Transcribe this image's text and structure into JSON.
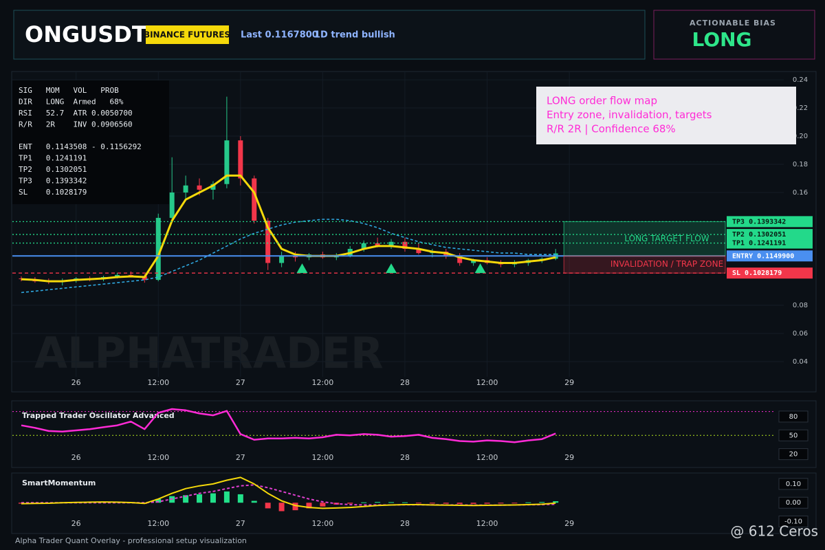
{
  "header": {
    "symbol": "ONGUSDT",
    "exchange": "BINANCE FUTURES",
    "last": "Last 0.1167800",
    "trend": "1D trend bullish"
  },
  "bias": {
    "caption": "ACTIONABLE BIAS",
    "value": "LONG"
  },
  "info_panel": {
    "stats": [
      "SIG   MOM   VOL   PROB",
      "DIR   LONG  Armed   68%",
      "RSI   52.7  ATR 0.0050700",
      "R/R   2R    INV 0.0906560"
    ],
    "levels": [
      "ENT   0.1143508 - 0.1156292",
      "TP1   0.1241191",
      "TP2   0.1302051",
      "TP3   0.1393342",
      "SL    0.1028179"
    ]
  },
  "overlay": {
    "lines": [
      "LONG order flow map",
      "Entry zone, invalidation, targets",
      "R/R 2R | Confidence 68%"
    ]
  },
  "watermark": "ALPHATRADER",
  "footer": "Alpha Trader Quant Overlay - professional setup visualization",
  "credit": "@ 612 Ceros",
  "chart_data": [
    {
      "type": "candlestick",
      "x": [
        -8,
        -6,
        -4,
        -2,
        0,
        2,
        4,
        6,
        8,
        10,
        12,
        14,
        16,
        18,
        20,
        22,
        24,
        26,
        28,
        30,
        32,
        34,
        36,
        38,
        40,
        42,
        44,
        46,
        48,
        50,
        52,
        54,
        56,
        58,
        60,
        62,
        64,
        66,
        68,
        70
      ],
      "open": [
        0.099,
        0.0985,
        0.097,
        0.0965,
        0.0975,
        0.099,
        0.0985,
        0.1,
        0.1015,
        0.1005,
        0.098,
        0.142,
        0.16,
        0.165,
        0.162,
        0.166,
        0.197,
        0.17,
        0.14,
        0.11,
        0.115,
        0.114,
        0.116,
        0.114,
        0.115,
        0.12,
        0.124,
        0.122,
        0.125,
        0.12,
        0.117,
        0.118,
        0.115,
        0.11,
        0.112,
        0.11,
        0.109,
        0.11,
        0.112,
        0.113
      ],
      "high": [
        0.1005,
        0.1,
        0.099,
        0.099,
        0.1,
        0.1005,
        0.101,
        0.103,
        0.104,
        0.102,
        0.145,
        0.185,
        0.172,
        0.17,
        0.168,
        0.228,
        0.2,
        0.172,
        0.142,
        0.118,
        0.118,
        0.117,
        0.118,
        0.117,
        0.122,
        0.126,
        0.128,
        0.127,
        0.128,
        0.124,
        0.12,
        0.12,
        0.117,
        0.113,
        0.114,
        0.112,
        0.112,
        0.113,
        0.114,
        0.12
      ],
      "low": [
        0.097,
        0.096,
        0.095,
        0.094,
        0.096,
        0.097,
        0.097,
        0.099,
        0.1,
        0.096,
        0.097,
        0.14,
        0.155,
        0.158,
        0.155,
        0.163,
        0.165,
        0.138,
        0.105,
        0.107,
        0.111,
        0.112,
        0.113,
        0.112,
        0.114,
        0.118,
        0.121,
        0.12,
        0.118,
        0.116,
        0.114,
        0.113,
        0.108,
        0.108,
        0.109,
        0.107,
        0.107,
        0.108,
        0.11,
        0.112
      ],
      "close": [
        0.0985,
        0.097,
        0.0965,
        0.0975,
        0.099,
        0.0985,
        0.1,
        0.1015,
        0.1005,
        0.098,
        0.142,
        0.16,
        0.165,
        0.162,
        0.166,
        0.197,
        0.17,
        0.14,
        0.11,
        0.115,
        0.114,
        0.116,
        0.114,
        0.115,
        0.12,
        0.124,
        0.122,
        0.125,
        0.12,
        0.117,
        0.118,
        0.115,
        0.11,
        0.112,
        0.11,
        0.109,
        0.11,
        0.112,
        0.113,
        0.1168
      ],
      "up_color": "#26c98a",
      "down_color": "#f2364a",
      "overlays": [
        {
          "color": "#2fa8e0",
          "dash": true,
          "values": [
            0.089,
            0.09,
            0.091,
            0.092,
            0.093,
            0.094,
            0.095,
            0.096,
            0.097,
            0.098,
            0.1,
            0.104,
            0.108,
            0.112,
            0.117,
            0.122,
            0.127,
            0.131,
            0.134,
            0.137,
            0.139,
            0.14,
            0.141,
            0.141,
            0.14,
            0.138,
            0.135,
            0.131,
            0.128,
            0.125,
            0.123,
            0.121,
            0.12,
            0.119,
            0.118,
            0.117,
            0.117,
            0.116,
            0.116,
            0.116
          ]
        },
        {
          "color": "#f5d90a",
          "values": [
            0.0985,
            0.098,
            0.097,
            0.097,
            0.098,
            0.0985,
            0.099,
            0.1,
            0.1005,
            0.1,
            0.115,
            0.14,
            0.155,
            0.16,
            0.165,
            0.172,
            0.172,
            0.16,
            0.135,
            0.12,
            0.116,
            0.115,
            0.115,
            0.115,
            0.117,
            0.12,
            0.122,
            0.122,
            0.121,
            0.12,
            0.118,
            0.117,
            0.114,
            0.112,
            0.111,
            0.11,
            0.11,
            0.111,
            0.112,
            0.114
          ]
        }
      ],
      "zones": [
        {
          "label": "LONG TARGET FLOW",
          "from": 0.11499,
          "to": 0.1393342,
          "color": "#23d98a"
        },
        {
          "label": "INVALIDATION / TRAP ZONE",
          "from": 0.1028179,
          "to": 0.11499,
          "color": "#f2364a"
        }
      ],
      "levels": [
        {
          "label": "TP1 0.1241191",
          "value": 0.1241191,
          "color": "#23d98a",
          "style": "dotted"
        },
        {
          "label": "TP2 0.1302051",
          "value": 0.1302051,
          "color": "#23d98a",
          "style": "dotted"
        },
        {
          "label": "TP3 0.1393342",
          "value": 0.1393342,
          "color": "#23d98a",
          "style": "dotted"
        },
        {
          "label": "ENTRY 0.1149900",
          "value": 0.11499,
          "color": "#4a8ff0",
          "style": "solid"
        },
        {
          "label": "SL 0.1028179",
          "value": 0.1028179,
          "color": "#f2364a",
          "style": "dashed"
        }
      ],
      "signals": {
        "x": [
          33,
          46,
          59
        ],
        "y": [
          0.1063,
          0.1063,
          0.1063
        ],
        "color": "#23d98a"
      },
      "xlim": [
        -9.3,
        103.3
      ],
      "ylim": [
        0.0185,
        0.2454
      ],
      "xticks": [
        {
          "value": 0,
          "label": "26"
        },
        {
          "value": 12,
          "label": "12:00"
        },
        {
          "value": 24,
          "label": "27"
        },
        {
          "value": 36,
          "label": "12:00"
        },
        {
          "value": 48,
          "label": "28"
        },
        {
          "value": 60,
          "label": "12:00"
        },
        {
          "value": 72,
          "label": "29"
        }
      ],
      "yticks": [
        0.04,
        0.06,
        0.08,
        0.16,
        0.18,
        {
          "value": 0.2,
          "label": "0.20"
        },
        0.22,
        0.24
      ],
      "grid": true
    },
    {
      "type": "line",
      "title": "Trapped Trader Oscillator Advanced",
      "x": [
        -8,
        -6,
        -4,
        -2,
        0,
        2,
        4,
        6,
        8,
        10,
        12,
        14,
        16,
        18,
        20,
        22,
        24,
        26,
        28,
        30,
        32,
        34,
        36,
        38,
        40,
        42,
        44,
        46,
        48,
        50,
        52,
        54,
        56,
        58,
        60,
        62,
        64,
        66,
        68,
        70
      ],
      "series": [
        {
          "color": "#ff2bd6",
          "values": [
            66,
            62,
            57,
            56,
            58,
            60,
            63,
            66,
            72,
            60,
            86,
            92,
            90,
            85,
            82,
            89,
            52,
            43,
            45,
            45,
            46,
            45,
            47,
            51,
            50,
            52,
            51,
            48,
            49,
            51,
            46,
            44,
            41,
            40,
            42,
            41,
            39,
            42,
            44,
            53
          ]
        }
      ],
      "levels": [
        {
          "value": 88,
          "color": "#ff2bd6"
        },
        {
          "value": 50,
          "color": "#b5e61d"
        }
      ],
      "xlim": [
        -9.3,
        103.3
      ],
      "ylim": [
        -1.3,
        95.3
      ],
      "xticks": [
        {
          "value": 0,
          "label": "26"
        },
        {
          "value": 12,
          "label": "12:00"
        },
        {
          "value": 24,
          "label": "27"
        },
        {
          "value": 36,
          "label": "12:00"
        },
        {
          "value": 48,
          "label": "28"
        },
        {
          "value": 60,
          "label": "12:00"
        },
        {
          "value": 72,
          "label": "29"
        }
      ],
      "yticks": [
        20,
        50,
        80
      ]
    },
    {
      "type": "combo",
      "title": "SmartMomentum",
      "x": [
        -8,
        -6,
        -4,
        -2,
        0,
        2,
        4,
        6,
        8,
        10,
        12,
        14,
        16,
        18,
        20,
        22,
        24,
        26,
        28,
        30,
        32,
        34,
        36,
        38,
        40,
        42,
        44,
        46,
        48,
        50,
        52,
        54,
        56,
        58,
        60,
        62,
        64,
        66,
        68,
        70
      ],
      "bars": [
        -0.005,
        -0.004,
        -0.003,
        0.002,
        0.003,
        0.004,
        0.005,
        0.004,
        0.002,
        -0.006,
        0.02,
        0.035,
        0.04,
        0.045,
        0.05,
        0.06,
        0.045,
        0.01,
        -0.03,
        -0.045,
        -0.04,
        -0.03,
        -0.02,
        -0.01,
        -0.005,
        0.002,
        0.004,
        0.003,
        0.002,
        -0.002,
        -0.004,
        -0.005,
        -0.006,
        -0.006,
        -0.005,
        -0.004,
        -0.002,
        0.002,
        0.004,
        0.008
      ],
      "up_color": "#22e08a",
      "down_color": "#f2364a",
      "series": [
        {
          "color": "#e040d0",
          "dash": true,
          "values": [
            0,
            0,
            0,
            0,
            0,
            0,
            0,
            0,
            0,
            0,
            0.005,
            0.02,
            0.035,
            0.05,
            0.06,
            0.075,
            0.09,
            0.095,
            0.08,
            0.06,
            0.04,
            0.02,
            0.005,
            -0.005,
            -0.01,
            -0.012,
            -0.012,
            -0.012,
            -0.011,
            -0.011,
            -0.011,
            -0.012,
            -0.012,
            -0.013,
            -0.013,
            -0.013,
            -0.012,
            -0.011,
            -0.01,
            -0.008
          ]
        },
        {
          "color": "#f5d90a",
          "values": [
            -0.005,
            -0.004,
            -0.003,
            0,
            0.002,
            0.003,
            0.004,
            0.003,
            0.001,
            -0.004,
            0.02,
            0.05,
            0.075,
            0.09,
            0.1,
            0.12,
            0.135,
            0.1,
            0.05,
            0.01,
            -0.015,
            -0.025,
            -0.03,
            -0.028,
            -0.025,
            -0.02,
            -0.015,
            -0.012,
            -0.01,
            -0.01,
            -0.012,
            -0.013,
            -0.014,
            -0.015,
            -0.014,
            -0.013,
            -0.012,
            -0.01,
            -0.008,
            -0.002
          ]
        }
      ],
      "xlim": [
        -9.3,
        103.3
      ],
      "ylim": [
        -0.164,
        0.151
      ],
      "xticks": [
        {
          "value": 0,
          "label": "26"
        },
        {
          "value": 12,
          "label": "12:00"
        },
        {
          "value": 24,
          "label": "27"
        },
        {
          "value": 36,
          "label": "12:00"
        },
        {
          "value": 48,
          "label": "28"
        },
        {
          "value": 60,
          "label": "12:00"
        },
        {
          "value": 72,
          "label": "29"
        }
      ],
      "yticks": [
        {
          "value": -0.1,
          "label": "-0.10"
        },
        {
          "value": 0,
          "label": "0.00"
        },
        {
          "value": 0.1,
          "label": "0.10"
        }
      ]
    }
  ]
}
